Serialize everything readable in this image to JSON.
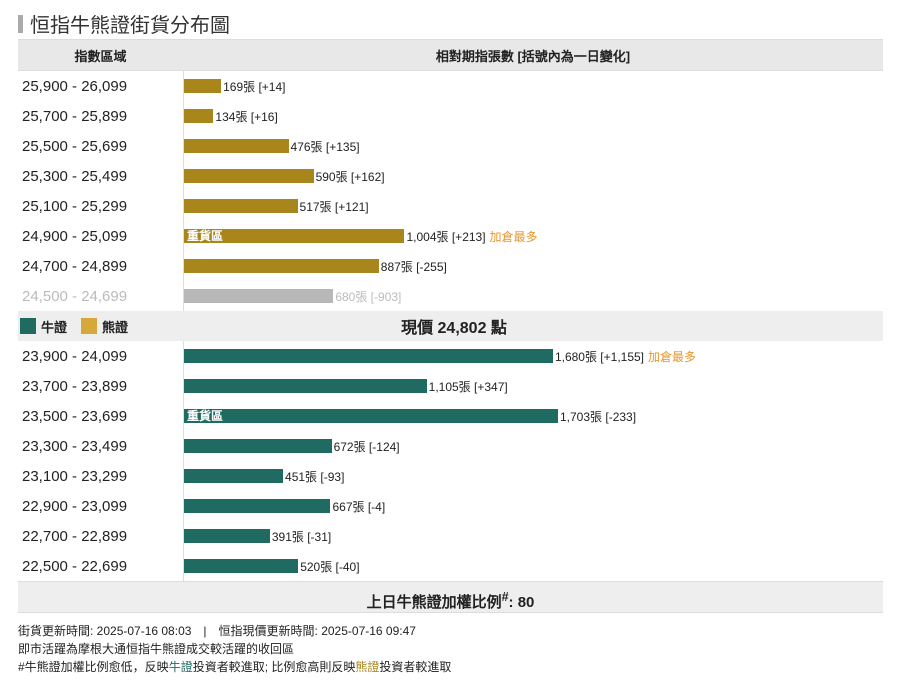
{
  "title": "恒指牛熊證街貨分布圖",
  "header": {
    "col1": "指數區域",
    "col2": "相對期指張數 [括號內為一日變化]"
  },
  "colors": {
    "bear": "#a8861c",
    "bull": "#1f6b62",
    "gray": "#b8b8b8",
    "bear_legend": "#d4a93a",
    "hot": "#e8962e"
  },
  "legend": {
    "bull": "牛證",
    "bear": "熊證"
  },
  "current_price": "現價 24,802 點",
  "chart_data": {
    "type": "bar",
    "title": "恒指牛熊證街貨分布圖",
    "unit": "張",
    "bear_rows": [
      {
        "range": "25,900 - 26,099",
        "value": 169,
        "label": "169張 [+14]",
        "inner": "",
        "note": ""
      },
      {
        "range": "25,700 - 25,899",
        "value": 134,
        "label": "134張 [+16]",
        "inner": "",
        "note": ""
      },
      {
        "range": "25,500 - 25,699",
        "value": 476,
        "label": "476張 [+135]",
        "inner": "",
        "note": ""
      },
      {
        "range": "25,300 - 25,499",
        "value": 590,
        "label": "590張 [+162]",
        "inner": "",
        "note": ""
      },
      {
        "range": "25,100 - 25,299",
        "value": 517,
        "label": "517張 [+121]",
        "inner": "",
        "note": ""
      },
      {
        "range": "24,900 - 25,099",
        "value": 1004,
        "label": "1,004張 [+213]",
        "inner": "重貨區",
        "note": "加倉最多"
      },
      {
        "range": "24,700 - 24,899",
        "value": 887,
        "label": "887張 [-255]",
        "inner": "",
        "note": ""
      },
      {
        "range": "24,500 - 24,699",
        "value": 680,
        "label": "680張 [-903]",
        "inner": "",
        "note": "",
        "gray": true
      }
    ],
    "bull_rows": [
      {
        "range": "23,900 - 24,099",
        "value": 1680,
        "label": "1,680張 [+1,155]",
        "inner": "",
        "note": "加倉最多"
      },
      {
        "range": "23,700 - 23,899",
        "value": 1105,
        "label": "1,105張 [+347]",
        "inner": "",
        "note": ""
      },
      {
        "range": "23,500 - 23,699",
        "value": 1703,
        "label": "1,703張 [-233]",
        "inner": "重貨區",
        "note": ""
      },
      {
        "range": "23,300 - 23,499",
        "value": 672,
        "label": "672張 [-124]",
        "inner": "",
        "note": ""
      },
      {
        "range": "23,100 - 23,299",
        "value": 451,
        "label": "451張 [-93]",
        "inner": "",
        "note": ""
      },
      {
        "range": "22,900 - 23,099",
        "value": 667,
        "label": "667張 [-4]",
        "inner": "",
        "note": ""
      },
      {
        "range": "22,700 - 22,899",
        "value": 391,
        "label": "391張 [-31]",
        "inner": "",
        "note": ""
      },
      {
        "range": "22,500 - 22,699",
        "value": 520,
        "label": "520張 [-40]",
        "inner": "",
        "note": ""
      }
    ],
    "xlim": [
      0,
      3000
    ]
  },
  "footer": {
    "ratio_label": "上日牛熊證加權比例",
    "ratio_sup": "#",
    "ratio_value": ": 80"
  },
  "notes": {
    "line1": "街貨更新時間: 2025-07-16 08:03　|　恒指現價更新時間: 2025-07-16 09:47",
    "line2": "即市活躍為摩根大通恒指牛熊證成交較活躍的收回區",
    "line3a": "#牛熊證加權比例愈低，反映",
    "line3b": "牛證",
    "line3c": "投資者較進取; 比例愈高則反映",
    "line3d": "熊證",
    "line3e": "投資者較進取"
  }
}
